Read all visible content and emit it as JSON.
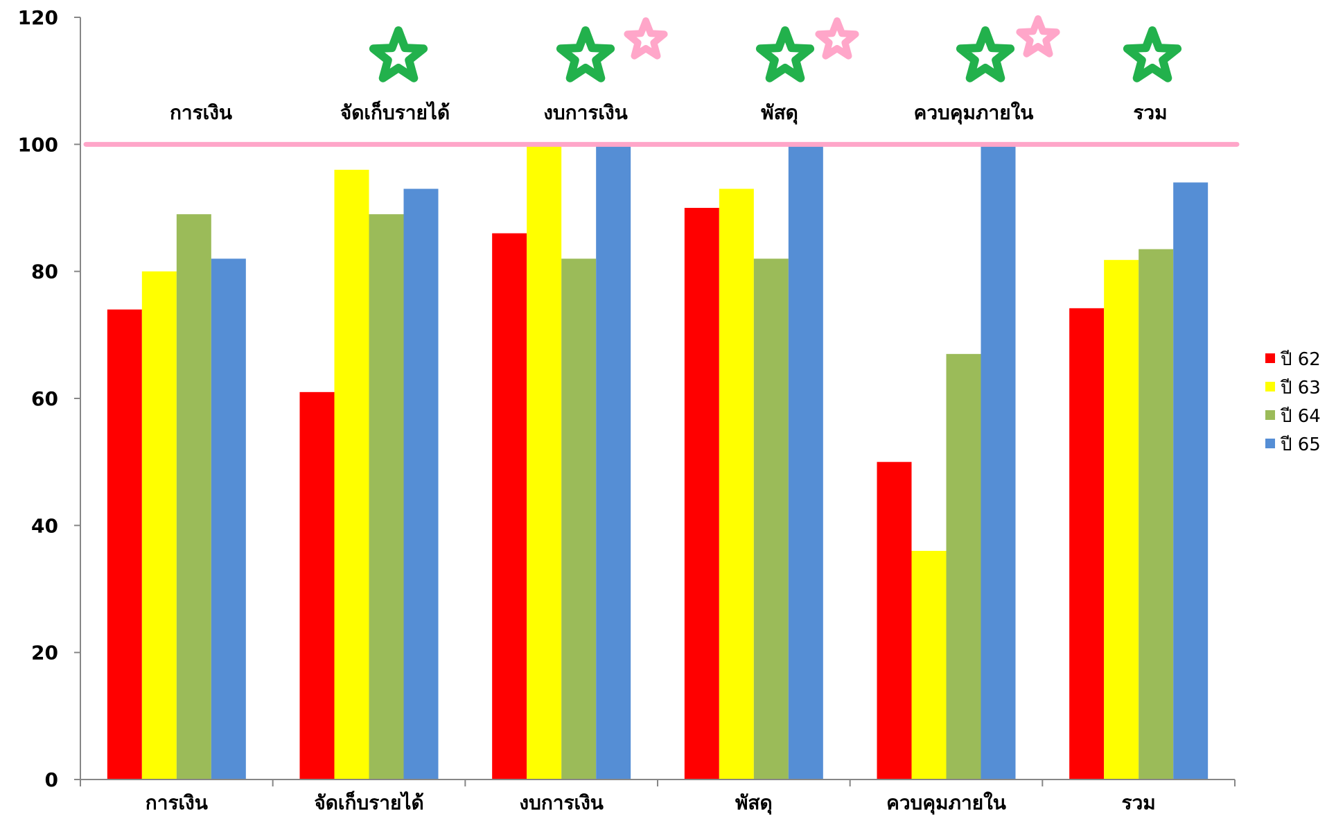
{
  "chart_data": {
    "type": "bar",
    "categories": [
      "การเงิน",
      "จัดเก็บรายได้",
      "งบการเงิน",
      "พัสดุ",
      "ควบคุมภายใน",
      "รวม"
    ],
    "series": [
      {
        "name": "ปี 62",
        "color": "#ff0000",
        "values": [
          74,
          61,
          86,
          90,
          50,
          74.2
        ]
      },
      {
        "name": "ปี 63",
        "color": "#ffff00",
        "values": [
          80,
          96,
          100,
          93,
          36,
          81.8
        ]
      },
      {
        "name": "ปี 64",
        "color": "#9bbb59",
        "values": [
          89,
          89,
          82,
          82,
          67,
          83.5
        ]
      },
      {
        "name": "ปี 65",
        "color": "#558ed5",
        "values": [
          82,
          93,
          100,
          100,
          100,
          94
        ]
      }
    ],
    "ylim": [
      0,
      120
    ],
    "y_ticks": [
      "0",
      "20",
      "40",
      "60",
      "80",
      "100",
      "120"
    ],
    "reference_line": {
      "value": 100,
      "color": "#ffa6c9"
    },
    "top_labels": [
      "การเงิน",
      "จัดเก็บรายได้",
      "งบการเงิน",
      "พัสดุ",
      "ควบคุมภายใน",
      "รวม"
    ],
    "stars": [
      {
        "category": "จัดเก็บรายได้",
        "icons": [
          "green-star"
        ]
      },
      {
        "category": "งบการเงิน",
        "icons": [
          "green-star",
          "pink-star"
        ]
      },
      {
        "category": "พัสดุ",
        "icons": [
          "green-star",
          "pink-star"
        ]
      },
      {
        "category": "ควบคุมภายใน",
        "icons": [
          "green-star",
          "pink-star"
        ]
      },
      {
        "category": "รวม",
        "icons": [
          "green-star"
        ]
      }
    ],
    "star_colors": {
      "green-star": "#22b14c",
      "pink-star": "#ffa6c9"
    },
    "legend_position": "right",
    "grid": false
  }
}
